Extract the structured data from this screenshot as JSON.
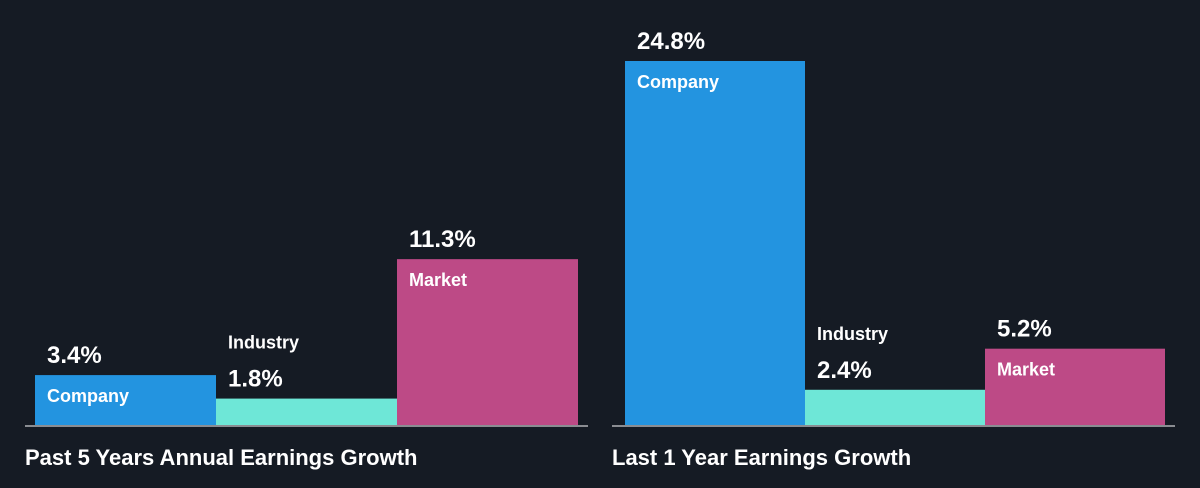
{
  "colors": {
    "background": "#151b24",
    "Company": "#2394e0",
    "Industry": "#6ee7d7",
    "Market": "#bd4a86"
  },
  "chart_data": [
    {
      "type": "bar",
      "title": "Past 5 Years Annual Earnings Growth",
      "categories": [
        "Company",
        "Industry",
        "Market"
      ],
      "values": [
        3.4,
        1.8,
        11.3
      ],
      "value_labels": [
        "3.4%",
        "1.8%",
        "11.3%"
      ],
      "unit": "%",
      "label_inside": [
        true,
        false,
        true
      ],
      "xlabel": "",
      "ylabel": "",
      "grid": false
    },
    {
      "type": "bar",
      "title": "Last 1 Year Earnings Growth",
      "categories": [
        "Company",
        "Industry",
        "Market"
      ],
      "values": [
        24.8,
        2.4,
        5.2
      ],
      "value_labels": [
        "24.8%",
        "2.4%",
        "5.2%"
      ],
      "unit": "%",
      "label_inside": [
        true,
        false,
        true
      ],
      "xlabel": "",
      "ylabel": "",
      "grid": false
    }
  ]
}
